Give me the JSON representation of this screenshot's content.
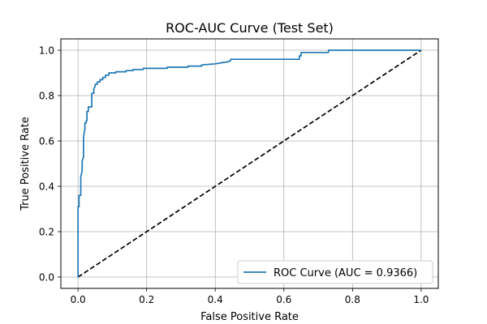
{
  "chart_data": {
    "type": "line",
    "title": "ROC-AUC Curve (Test Set)",
    "xlabel": "False Positive Rate",
    "ylabel": "True Positive Rate",
    "xlim": [
      -0.05,
      1.05
    ],
    "ylim": [
      -0.05,
      1.05
    ],
    "xticks": [
      "0.0",
      "0.2",
      "0.4",
      "0.6",
      "0.8",
      "1.0"
    ],
    "yticks": [
      "0.0",
      "0.2",
      "0.4",
      "0.6",
      "0.8",
      "1.0"
    ],
    "grid": true,
    "legend_position": "lower-right",
    "series": [
      {
        "name": "ROC Curve (AUC = 0.9366)",
        "color": "#1f77b4",
        "style": "solid",
        "x": [
          0.0,
          0.0,
          0.003,
          0.003,
          0.008,
          0.008,
          0.012,
          0.012,
          0.016,
          0.016,
          0.018,
          0.02,
          0.02,
          0.024,
          0.024,
          0.026,
          0.026,
          0.03,
          0.03,
          0.04,
          0.04,
          0.046,
          0.046,
          0.05,
          0.05,
          0.056,
          0.056,
          0.064,
          0.064,
          0.072,
          0.072,
          0.08,
          0.08,
          0.09,
          0.09,
          0.11,
          0.11,
          0.14,
          0.14,
          0.16,
          0.16,
          0.19,
          0.19,
          0.26,
          0.26,
          0.32,
          0.32,
          0.36,
          0.36,
          0.4,
          0.42,
          0.44,
          0.445,
          0.445,
          0.55,
          0.645,
          0.645,
          0.65,
          0.65,
          0.73,
          0.73,
          1.0
        ],
        "y": [
          0.0,
          0.31,
          0.31,
          0.36,
          0.36,
          0.44,
          0.47,
          0.51,
          0.53,
          0.61,
          0.64,
          0.65,
          0.68,
          0.68,
          0.69,
          0.69,
          0.73,
          0.73,
          0.75,
          0.75,
          0.81,
          0.81,
          0.83,
          0.84,
          0.85,
          0.85,
          0.86,
          0.86,
          0.87,
          0.87,
          0.88,
          0.88,
          0.89,
          0.89,
          0.9,
          0.9,
          0.905,
          0.905,
          0.91,
          0.91,
          0.915,
          0.915,
          0.92,
          0.92,
          0.925,
          0.925,
          0.93,
          0.93,
          0.935,
          0.94,
          0.945,
          0.95,
          0.955,
          0.96,
          0.96,
          0.96,
          0.975,
          0.975,
          0.99,
          0.99,
          1.0,
          1.0
        ]
      },
      {
        "name": "",
        "color": "#000000",
        "style": "dashed",
        "x": [
          0.0,
          1.0
        ],
        "y": [
          0.0,
          1.0
        ]
      }
    ]
  }
}
